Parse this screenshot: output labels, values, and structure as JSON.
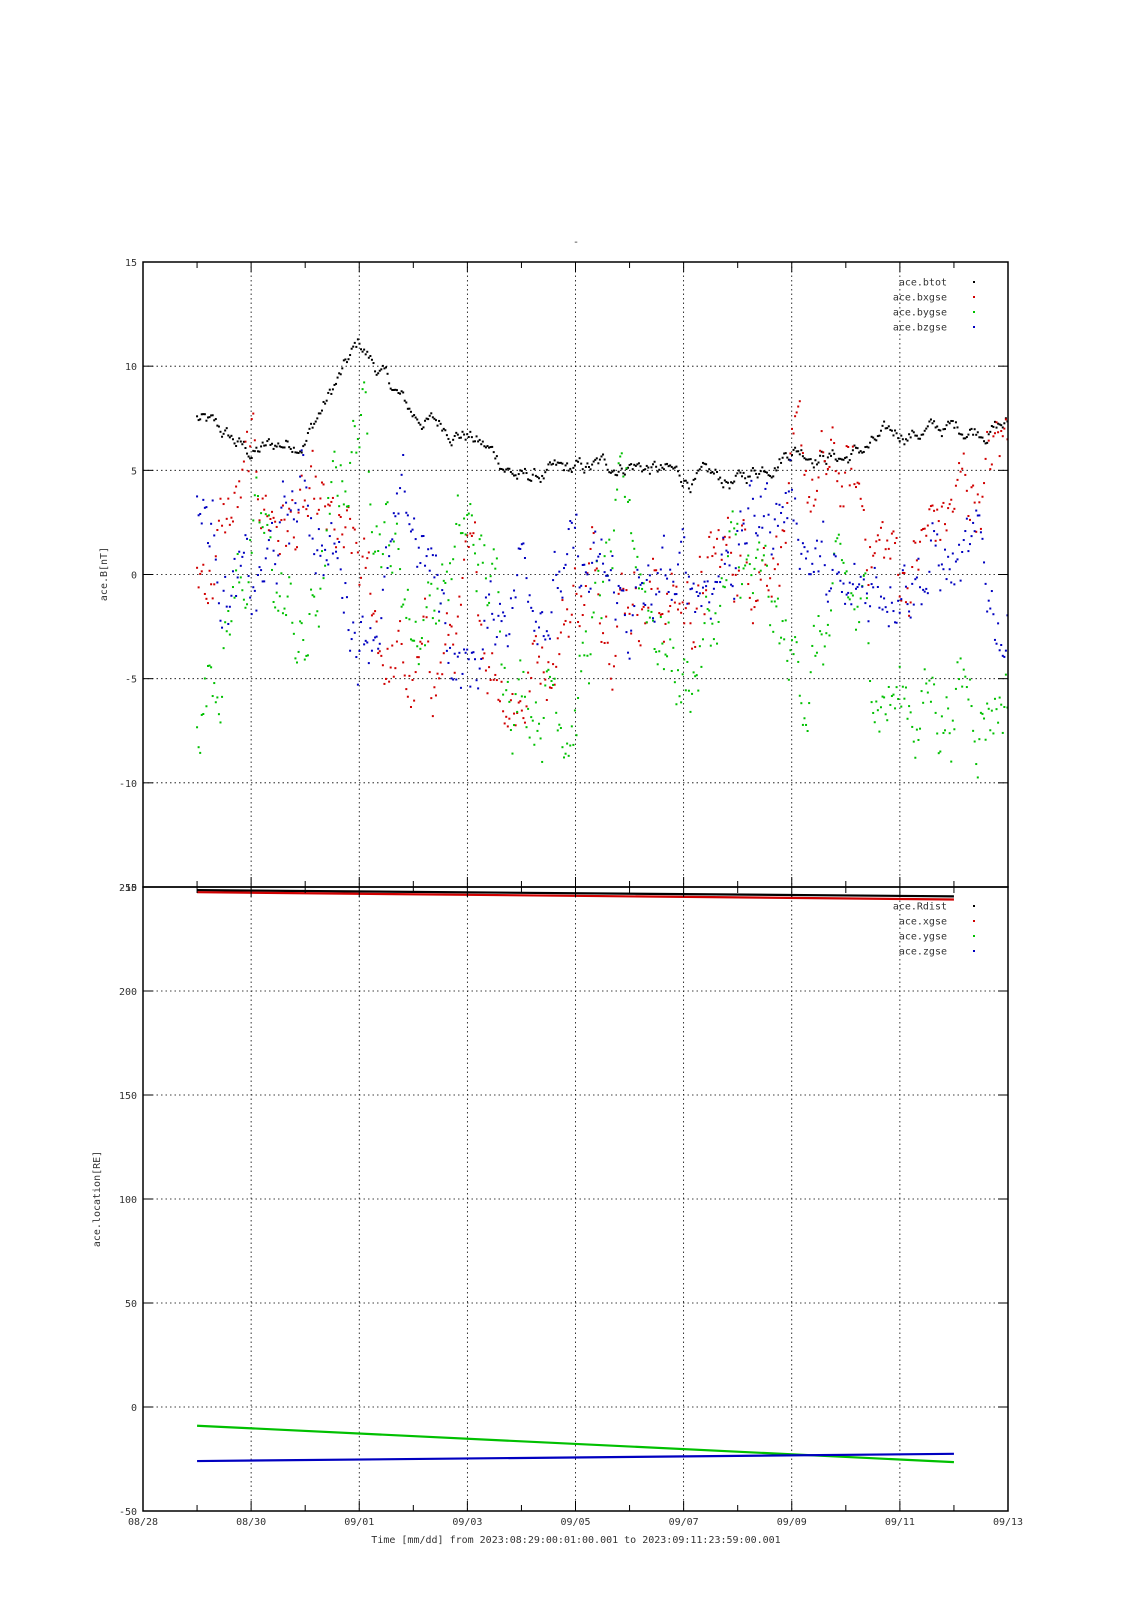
{
  "figure": {
    "top_title": "-",
    "time_label": "Time [mm/dd]  from 2023:08:29:00:01:00.001  to  2023:09:11:23:59:00.001"
  },
  "chart_data": [
    {
      "type": "scatter",
      "title": "",
      "ylabel": "ace.B[nT]",
      "xlim": [
        "08/28",
        "09/13"
      ],
      "ylim": [
        -15,
        15
      ],
      "grid": true,
      "legend_position": "top-right",
      "yticks": [
        "15",
        "10",
        "5",
        "0",
        "-5",
        "-10",
        "-15"
      ],
      "xticks": [
        "08/30",
        "09/01",
        "09/03",
        "09/05",
        "09/07",
        "09/09",
        "09/11"
      ],
      "x_days": [
        "08/29",
        "08/30",
        "08/31",
        "09/01",
        "09/02",
        "09/03",
        "09/04",
        "09/05",
        "09/06",
        "09/07",
        "09/08",
        "09/09",
        "09/10",
        "09/11",
        "09/12"
      ],
      "series": [
        {
          "name": "ace.btot",
          "color": "#000000",
          "values": [
            7.5,
            5.8,
            6.6,
            11.0,
            7.6,
            6.8,
            4.6,
            4.9,
            5.4,
            4.6,
            4.4,
            6.2,
            5.6,
            6.8,
            7.0
          ]
        },
        {
          "name": "ace.bxgse",
          "color": "#d00000",
          "values": [
            0.0,
            4.0,
            2.0,
            -1.0,
            -6.0,
            -2.0,
            -5.0,
            -0.5,
            0.5,
            -1.5,
            1.0,
            3.5,
            4.0,
            0.0,
            3.0
          ]
        },
        {
          "name": "ace.bygse",
          "color": "#00c000",
          "values": [
            -6.0,
            2.0,
            -4.0,
            8.0,
            -2.0,
            1.5,
            -4.5,
            -5.0,
            2.0,
            -5.0,
            0.0,
            -5.0,
            -2.0,
            -6.0,
            -5.5
          ]
        },
        {
          "name": "ace.bzgse",
          "color": "#0000c0",
          "values": [
            3.5,
            -2.0,
            4.0,
            -2.0,
            2.0,
            -5.0,
            1.0,
            -0.5,
            -2.0,
            -1.0,
            2.0,
            4.0,
            -3.0,
            2.0,
            0.0
          ]
        }
      ]
    },
    {
      "type": "line",
      "title": "",
      "xlabel": "Time [mm/dd]",
      "ylabel": "ace.location[RE]",
      "xlim": [
        "08/28",
        "09/13"
      ],
      "ylim": [
        -50,
        250
      ],
      "grid": true,
      "legend_position": "top-right",
      "yticks": [
        "250",
        "200",
        "150",
        "100",
        "50",
        "0",
        "-50"
      ],
      "xticks": [
        "08/28",
        "08/30",
        "09/01",
        "09/03",
        "09/05",
        "09/07",
        "09/09",
        "09/11",
        "09/13"
      ],
      "x": [
        "08/29",
        "09/12"
      ],
      "series": [
        {
          "name": "ace.Rdist",
          "color": "#000000",
          "values": [
            248.5,
            245.5
          ]
        },
        {
          "name": "ace.xgse",
          "color": "#d00000",
          "values": [
            247.5,
            244.0
          ]
        },
        {
          "name": "ace.ygse",
          "color": "#00c000",
          "values": [
            -9.0,
            -26.5
          ]
        },
        {
          "name": "ace.zgse",
          "color": "#0000c0",
          "values": [
            -26.0,
            -22.5
          ]
        }
      ]
    }
  ]
}
